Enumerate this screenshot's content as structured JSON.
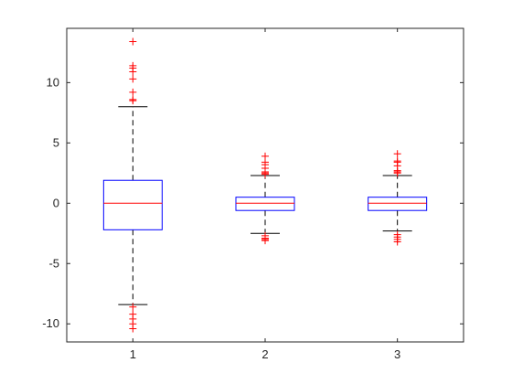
{
  "chart_data": {
    "type": "box",
    "categories": [
      "1",
      "2",
      "3"
    ],
    "ylim": [
      -11.5,
      14.5
    ],
    "yticks": [
      -10,
      -5,
      0,
      5,
      10
    ],
    "ytick_labels": [
      "-10",
      "-5",
      "0",
      "5",
      "10"
    ],
    "grid": false,
    "boxes": [
      {
        "label": "1",
        "q1": -2.2,
        "median": 0.0,
        "q3": 1.9,
        "whisker_low": -8.4,
        "whisker_high": 8.0,
        "outliers_high": [
          8.5,
          8.6,
          9.2,
          10.3,
          10.9,
          11.2,
          11.4,
          13.4
        ],
        "outliers_low": [
          -8.6,
          -9.2,
          -9.6,
          -10.0,
          -10.4
        ]
      },
      {
        "label": "2",
        "q1": -0.6,
        "median": 0.0,
        "q3": 0.5,
        "whisker_low": -2.5,
        "whisker_high": 2.3,
        "outliers_high": [
          2.4,
          2.5,
          2.6,
          2.9,
          3.2,
          3.4,
          3.9
        ],
        "outliers_low": [
          -2.7,
          -2.9,
          -3.0,
          -3.1
        ]
      },
      {
        "label": "3",
        "q1": -0.6,
        "median": 0.0,
        "q3": 0.5,
        "whisker_low": -2.3,
        "whisker_high": 2.3,
        "outliers_high": [
          2.5,
          2.6,
          2.7,
          3.1,
          3.4,
          3.5,
          4.1
        ],
        "outliers_low": [
          -2.6,
          -2.8,
          -3.0,
          -3.2
        ]
      }
    ],
    "colors": {
      "box": "#0000ff",
      "median": "#ff0000",
      "outlier": "#ff0000",
      "whisker": "#000000",
      "axis": "#262626"
    }
  }
}
